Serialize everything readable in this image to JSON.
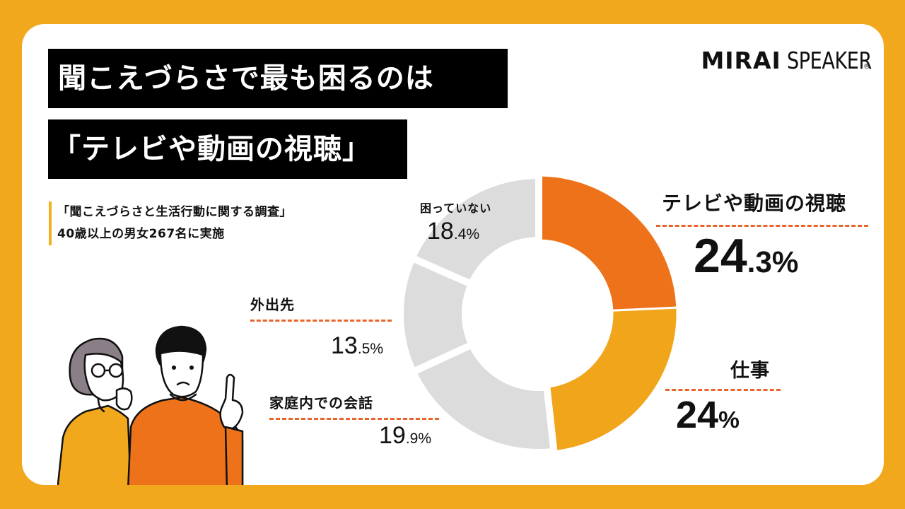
{
  "header": {
    "title_line1": "聞こえづらさで最も困るのは",
    "title_line2": "「テレビや動画の視聴」"
  },
  "logo": {
    "brand_bold": "MIRAI",
    "brand_light": "SPEAKER",
    "registered": "®"
  },
  "survey": {
    "name": "「聞こえづらさと生活行動に関する調査」",
    "sample": "40歳以上の男女267名に実施"
  },
  "colors": {
    "background": "#F2A81D",
    "card": "#FFFFFF",
    "slice_primary": "#EE7219",
    "slice_secondary": "#F0A51A",
    "slice_other": "#DCDCDC",
    "dash": "#E8642A",
    "accent_bar": "#F2B01D"
  },
  "chart_data": {
    "type": "pie",
    "subtype": "donut",
    "title": "聞こえづらさで最も困るのは「テレビや動画の視聴」",
    "categories": [
      "テレビや動画の視聴",
      "仕事",
      "家庭内での会話",
      "外出先",
      "困っていない"
    ],
    "values": [
      24.3,
      24.0,
      19.9,
      13.5,
      18.4
    ],
    "unit": "%",
    "labels": [
      {
        "name": "テレビや動画の視聴",
        "int": "24",
        "dec": ".3",
        "sym": "%"
      },
      {
        "name": "仕事",
        "int": "24",
        "dec": "",
        "sym": "%"
      },
      {
        "name": "家庭内での会話",
        "int": "19",
        "dec": ".9",
        "sym": "%"
      },
      {
        "name": "外出先",
        "int": "13",
        "dec": ".5",
        "sym": "%"
      },
      {
        "name": "困っていない",
        "int": "18",
        "dec": ".4",
        "sym": "%"
      }
    ],
    "slice_colors": [
      "#EE7219",
      "#F0A51A",
      "#DCDCDC",
      "#DCDCDC",
      "#DCDCDC"
    ],
    "start_angle": "12 o'clock, clockwise",
    "note": "40歳以上の男女267名に実施"
  }
}
